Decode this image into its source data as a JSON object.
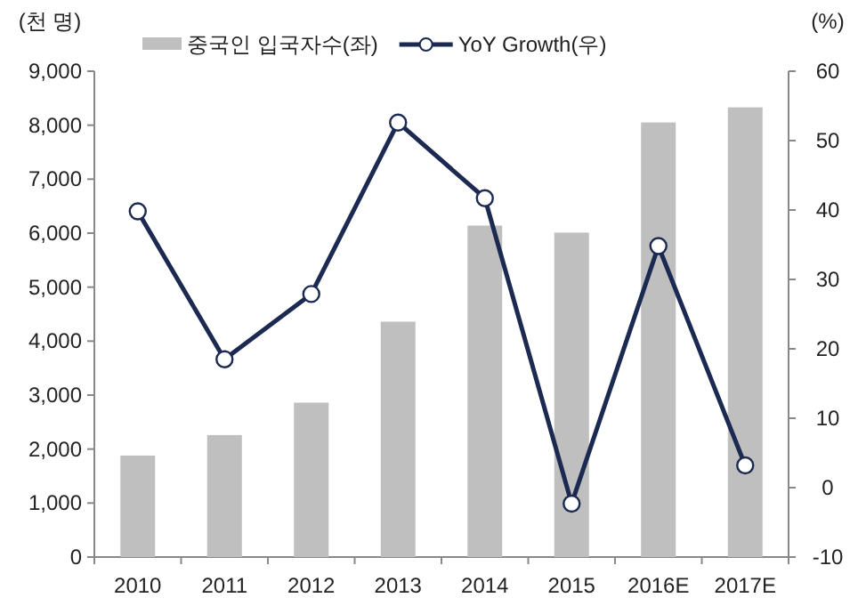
{
  "chart_data": {
    "type": "bar",
    "ylabel": "(천 명)",
    "y2label": "(%)",
    "categories": [
      "2010",
      "2011",
      "2012",
      "2013",
      "2014",
      "2015",
      "2016E",
      "2017E"
    ],
    "series": [
      {
        "name": "중국인 입국자수(좌)",
        "color": "#bfbfbf",
        "values": [
          1880,
          2260,
          2860,
          4360,
          6140,
          6010,
          8050,
          8330
        ]
      },
      {
        "name": "YoY Growth(우)",
        "type": "line",
        "axis": "y2",
        "color": "#1c2a52",
        "marker": "circle",
        "values": [
          39.8,
          18.5,
          27.9,
          52.6,
          41.7,
          -2.3,
          34.8,
          3.2
        ]
      }
    ],
    "ylim": [
      0,
      9000
    ],
    "yticks": [
      {
        "value": 0,
        "label": "0"
      },
      {
        "value": 1000,
        "label": "1,000"
      },
      {
        "value": 2000,
        "label": "2,000"
      },
      {
        "value": 3000,
        "label": "3,000"
      },
      {
        "value": 4000,
        "label": "4,000"
      },
      {
        "value": 5000,
        "label": "5,000"
      },
      {
        "value": 6000,
        "label": "6,000"
      },
      {
        "value": 7000,
        "label": "7,000"
      },
      {
        "value": 8000,
        "label": "8,000"
      },
      {
        "value": 9000,
        "label": "9,000"
      }
    ],
    "y2lim": [
      -10,
      60
    ],
    "y2ticks": [
      -10,
      0,
      10,
      20,
      30,
      40,
      50,
      60
    ],
    "grid": false,
    "legend": "top"
  }
}
